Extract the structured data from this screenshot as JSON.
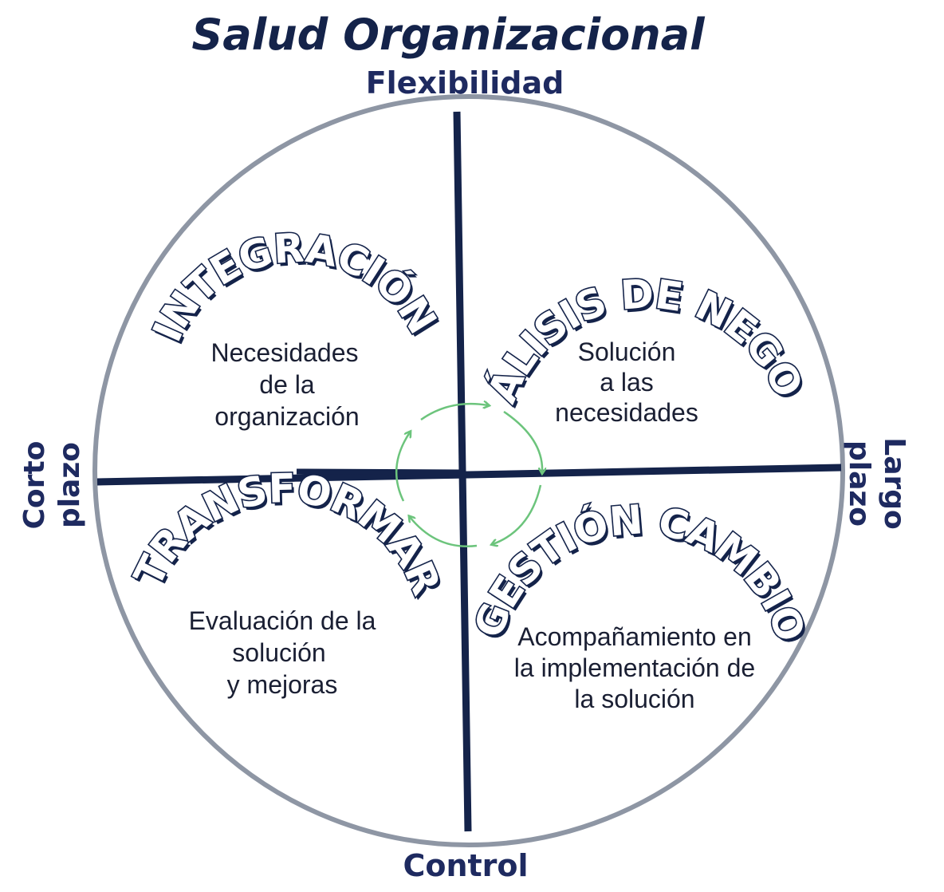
{
  "title": "Salud Organizacional",
  "axes": {
    "top": "Flexibilidad",
    "bottom": "Control",
    "left_line1": "Corto",
    "left_line2": "plazo",
    "right_line1": "Largo",
    "right_line2": "plazo"
  },
  "quadrants": {
    "top_left": {
      "heading": "INTEGRACIÓN",
      "lines": [
        "Necesidades",
        "de la",
        "organización"
      ]
    },
    "top_right": {
      "heading": "ANÁLISIS DE NEGOCIO",
      "lines": [
        "Solución",
        "a las",
        "necesidades"
      ]
    },
    "bottom_left": {
      "heading": "TRANSFORMAR",
      "lines": [
        "Evaluación de la",
        "solución",
        "y mejoras"
      ]
    },
    "bottom_right": {
      "heading": "GESTIÓN CAMBIO",
      "lines": [
        "Acompañamiento en",
        "la implementación de",
        "la solución"
      ]
    }
  },
  "colors": {
    "circle": "#8e96a4",
    "axes": "#14234a",
    "cycle_arrows": "#6cc47c",
    "text": "#1e2a60"
  }
}
